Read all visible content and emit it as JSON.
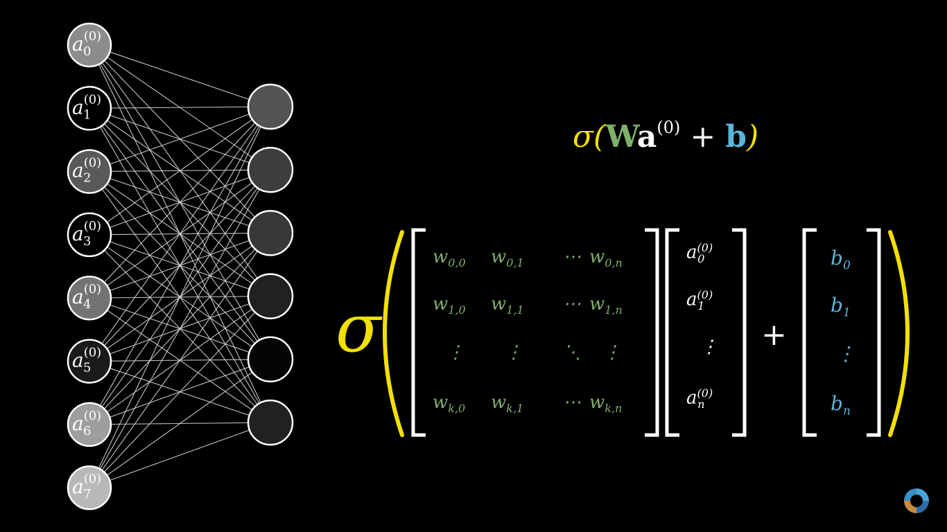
{
  "network": {
    "input_layer": {
      "count": 8,
      "labels": [
        {
          "base": "a",
          "sub": "0",
          "sup": "(0)"
        },
        {
          "base": "a",
          "sub": "1",
          "sup": "(0)"
        },
        {
          "base": "a",
          "sub": "2",
          "sup": "(0)"
        },
        {
          "base": "a",
          "sub": "3",
          "sup": "(0)"
        },
        {
          "base": "a",
          "sub": "4",
          "sup": "(0)"
        },
        {
          "base": "a",
          "sub": "5",
          "sup": "(0)"
        },
        {
          "base": "a",
          "sub": "6",
          "sup": "(0)"
        },
        {
          "base": "a",
          "sub": "7",
          "sup": "(0)"
        }
      ],
      "activations": [
        0.55,
        0.0,
        0.35,
        0.0,
        0.45,
        0.1,
        0.62,
        0.72
      ]
    },
    "output_layer": {
      "count": 6,
      "activations": [
        0.33,
        0.24,
        0.22,
        0.13,
        0.02,
        0.13
      ]
    },
    "connected": "fully"
  },
  "equation_top": {
    "sigma": "σ",
    "open": "(",
    "W": "W",
    "a": "a",
    "a_sup": "(0)",
    "plus": "+",
    "b": "b",
    "close": ")"
  },
  "matrix_eq": {
    "sigma": "σ",
    "weights": [
      [
        {
          "b": "w",
          "s": "0,0"
        },
        {
          "b": "w",
          "s": "0,1"
        },
        {
          "b": "⋯",
          "s": ""
        },
        {
          "b": "w",
          "s": "0,n"
        }
      ],
      [
        {
          "b": "w",
          "s": "1,0"
        },
        {
          "b": "w",
          "s": "1,1"
        },
        {
          "b": "⋯",
          "s": ""
        },
        {
          "b": "w",
          "s": "1,n"
        }
      ],
      [
        {
          "b": "⋮",
          "s": ""
        },
        {
          "b": "⋮",
          "s": ""
        },
        {
          "b": "⋱",
          "s": ""
        },
        {
          "b": "⋮",
          "s": ""
        }
      ],
      [
        {
          "b": "w",
          "s": "k,0"
        },
        {
          "b": "w",
          "s": "k,1"
        },
        {
          "b": "⋯",
          "s": ""
        },
        {
          "b": "w",
          "s": "k,n"
        }
      ]
    ],
    "activations": [
      {
        "b": "a",
        "s": "0",
        "p": "(0)"
      },
      {
        "b": "a",
        "s": "1",
        "p": "(0)"
      },
      {
        "b": "⋮",
        "s": "",
        "p": ""
      },
      {
        "b": "a",
        "s": "n",
        "p": "(0)"
      }
    ],
    "plus": "+",
    "bias": [
      {
        "b": "b",
        "s": "0"
      },
      {
        "b": "b",
        "s": "1"
      },
      {
        "b": "⋮",
        "s": ""
      },
      {
        "b": "b",
        "s": "n"
      }
    ]
  },
  "colors": {
    "sigma": "#f2e000",
    "weights": "#7fb06a",
    "bias": "#5cb4d8",
    "activations": "#ffffff",
    "background": "#000000"
  },
  "logo_icon": "channel-logo-icon"
}
